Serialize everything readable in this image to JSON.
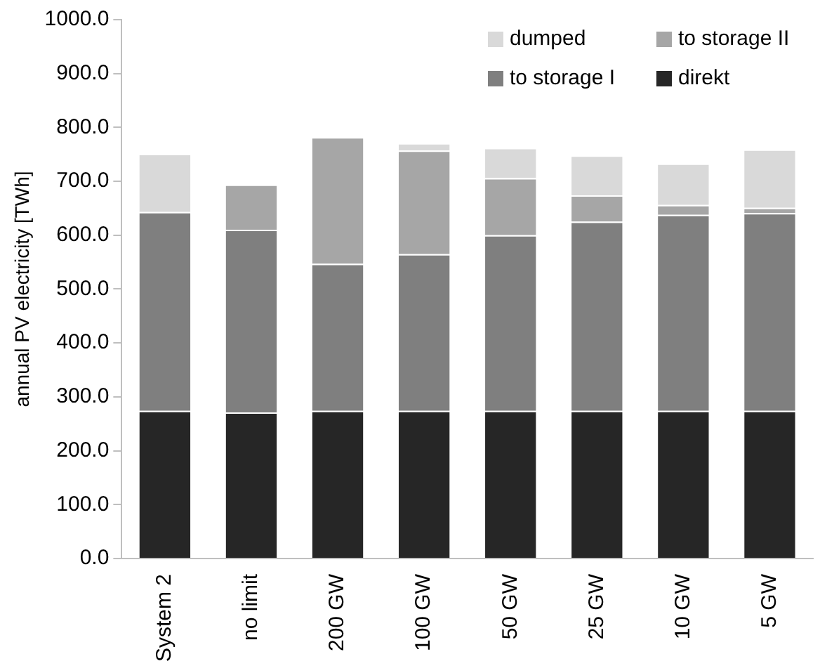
{
  "chart_data": {
    "type": "bar",
    "stacked": true,
    "ylabel": "annual PV electricity [TWh]",
    "categories": [
      "System 2",
      "no limit",
      "200 GW",
      "100 GW",
      "50 GW",
      "25 GW",
      "10 GW",
      "5 GW"
    ],
    "series": [
      {
        "name": "direkt",
        "color": "#262626",
        "values": [
          274,
          271,
          274,
          274,
          274,
          274,
          274,
          274
        ]
      },
      {
        "name": "to storage I",
        "color": "#7f7f7f",
        "values": [
          369,
          339,
          273,
          291,
          326,
          351,
          364,
          367
        ]
      },
      {
        "name": "to storage II",
        "color": "#a6a6a6",
        "values": [
          0,
          84,
          235,
          192,
          106,
          49,
          18,
          10
        ]
      },
      {
        "name": "dumped",
        "color": "#d9d9d9",
        "values": [
          108,
          0,
          0,
          14,
          56,
          74,
          77,
          108
        ]
      }
    ],
    "ylim": [
      0,
      1000
    ],
    "yticks": [
      {
        "value": 0,
        "label": "0.0"
      },
      {
        "value": 100,
        "label": "100.0"
      },
      {
        "value": 200,
        "label": "200.0"
      },
      {
        "value": 300,
        "label": "300.0"
      },
      {
        "value": 400,
        "label": "400.0"
      },
      {
        "value": 500,
        "label": "500.0"
      },
      {
        "value": 600,
        "label": "600.0"
      },
      {
        "value": 700,
        "label": "700.0"
      },
      {
        "value": 800,
        "label": "800.0"
      },
      {
        "value": 900,
        "label": "900.0"
      },
      {
        "value": 1000,
        "label": "1000.0"
      }
    ],
    "grid": false,
    "legend": "top right"
  }
}
